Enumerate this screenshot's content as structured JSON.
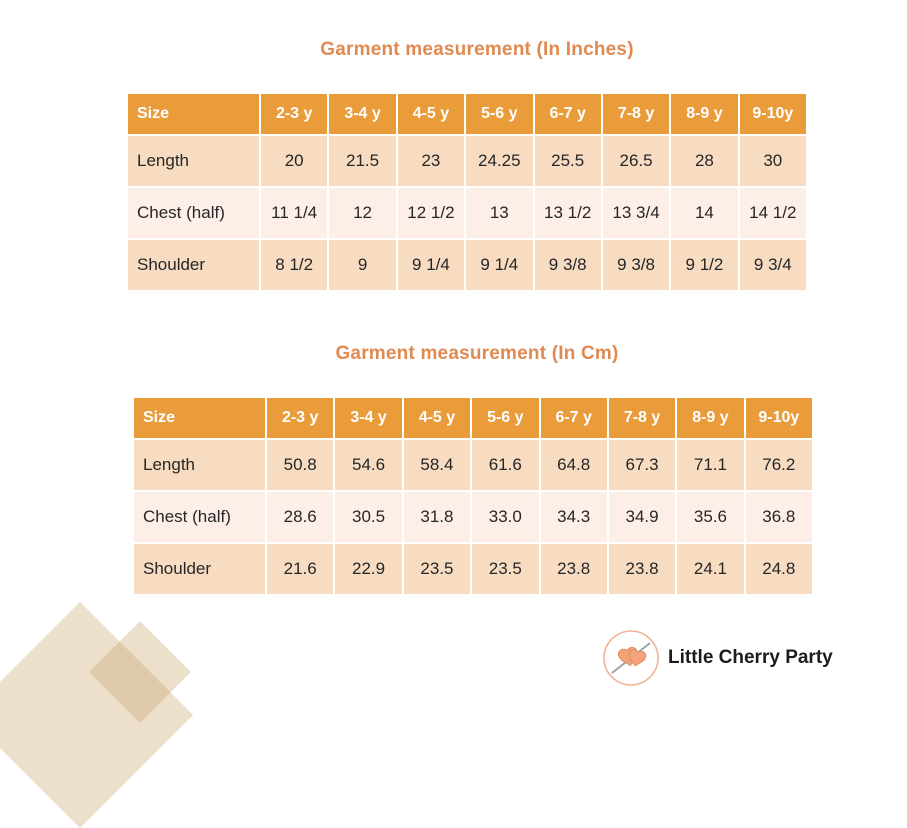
{
  "tables": [
    {
      "title": "Garment measurement (In Inches)",
      "columns": [
        "Size",
        "2-3 y",
        "3-4 y",
        "4-5 y",
        "5-6 y",
        "6-7 y",
        "7-8 y",
        "8-9 y",
        "9-10y"
      ],
      "rows": [
        {
          "label": "Length",
          "values": [
            "20",
            "21.5",
            "23",
            "24.25",
            "25.5",
            "26.5",
            "28",
            "30"
          ]
        },
        {
          "label": "Chest (half)",
          "values": [
            "11 1/4",
            "12",
            "12 1/2",
            "13",
            "13 1/2",
            "13 3/4",
            "14",
            "14 1/2"
          ]
        },
        {
          "label": "Shoulder",
          "values": [
            "8 1/2",
            "9",
            "9 1/4",
            "9 1/4",
            "9 3/8",
            "9 3/8",
            "9 1/2",
            "9 3/4"
          ]
        }
      ]
    },
    {
      "title": "Garment measurement (In Cm)",
      "columns": [
        "Size",
        "2-3 y",
        "3-4 y",
        "4-5 y",
        "5-6 y",
        "6-7 y",
        "7-8 y",
        "8-9 y",
        "9-10y"
      ],
      "rows": [
        {
          "label": "Length",
          "values": [
            "50.8",
            "54.6",
            "58.4",
            "61.6",
            "64.8",
            "67.3",
            "71.1",
            "76.2"
          ]
        },
        {
          "label": "Chest (half)",
          "values": [
            "28.6",
            "30.5",
            "31.8",
            "33.0",
            "34.3",
            "34.9",
            "35.6",
            "36.8"
          ]
        },
        {
          "label": "Shoulder",
          "values": [
            "21.6",
            "22.9",
            "23.5",
            "23.5",
            "23.8",
            "23.8",
            "24.1",
            "24.8"
          ]
        }
      ]
    }
  ],
  "branding": {
    "logo_text": "Little Cherry Party",
    "logo_icon": "cherry-hearts-icon"
  },
  "colors": {
    "header_bg": "#EA9C3B",
    "header_text": "#FFFFFF",
    "row_dark": "#F7DCC2",
    "row_light": "#FDEFE8",
    "title_color": "#E08A51",
    "body_text": "#262626",
    "decor_shape": "rgba(188,142,75,0.28)",
    "logo_ring": "#F0B394",
    "logo_cherry": "#F2A377",
    "logo_cherry_line": "#E08A5C",
    "logo_needle": "#98A0A6"
  }
}
